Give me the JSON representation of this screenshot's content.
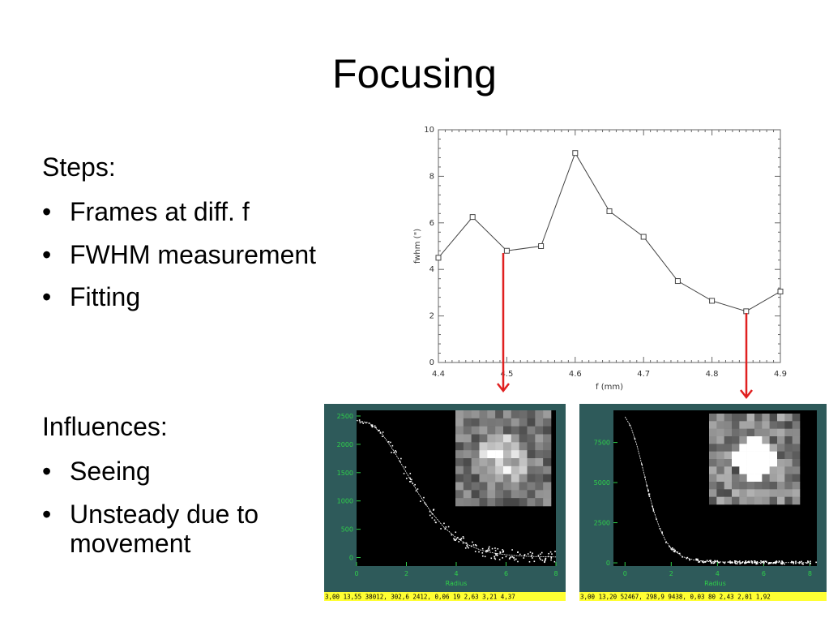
{
  "slide": {
    "title": "Focusing"
  },
  "steps": {
    "heading": "Steps:",
    "items": [
      "Frames at diff. f",
      "FWHM measurement",
      "Fitting"
    ]
  },
  "influences": {
    "heading": "Influences:",
    "items": [
      "Seeing",
      "Unsteady due to movement"
    ]
  },
  "colors": {
    "arrow": "#e02020",
    "panel_bg": "#2e5a5a",
    "axis_green": "#2fd04a",
    "status_yellow": "#ffff33"
  },
  "chart_data": [
    {
      "type": "line",
      "title": "",
      "xlabel": "f (mm)",
      "ylabel": "fwhm (\")",
      "xlim": [
        4.4,
        4.9
      ],
      "ylim": [
        0,
        10
      ],
      "x": [
        4.4,
        4.45,
        4.5,
        4.55,
        4.6,
        4.65,
        4.7,
        4.75,
        4.8,
        4.85,
        4.9
      ],
      "series": [
        {
          "values": [
            4.5,
            6.25,
            4.8,
            5.0,
            9.0,
            6.5,
            5.4,
            3.5,
            2.65,
            2.2,
            3.05
          ]
        }
      ],
      "xticks": [
        "4.4",
        "4.5",
        "4.6",
        "4.7",
        "4.8",
        "4.9"
      ],
      "yticks": [
        "0",
        "2",
        "4",
        "6",
        "8",
        "10"
      ],
      "marker": "square"
    },
    {
      "type": "scatter",
      "xlabel": "Radius",
      "ylabel": "",
      "xlim": [
        0,
        8
      ],
      "ylim": [
        -150,
        2600
      ],
      "xticks": [
        "0",
        "2",
        "4",
        "6",
        "8"
      ],
      "yticks": [
        "0",
        "500",
        "1000",
        "1500",
        "2000",
        "2500"
      ],
      "profile_fit": {
        "x": [
          0,
          0.5,
          1,
          1.5,
          2,
          2.5,
          3,
          3.5,
          4,
          4.5,
          5,
          5.5,
          6,
          6.5,
          7,
          7.5,
          8
        ],
        "y": [
          2420,
          2380,
          2200,
          1880,
          1500,
          1120,
          800,
          540,
          350,
          220,
          130,
          80,
          50,
          30,
          20,
          15,
          10
        ]
      },
      "status": "3,00  13,55  38012,   302,6   2412, 0,06   19 2,63     3,21     4,37"
    },
    {
      "type": "scatter",
      "xlabel": "Radius",
      "ylabel": "",
      "xlim": [
        -0.5,
        8.3
      ],
      "ylim": [
        -200,
        9500
      ],
      "xticks": [
        "0",
        "2",
        "4",
        "6",
        "8"
      ],
      "yticks": [
        "0",
        "2500",
        "5000",
        "7500"
      ],
      "profile_fit": {
        "x": [
          0,
          0.25,
          0.5,
          0.75,
          1,
          1.25,
          1.5,
          1.75,
          2,
          2.5,
          3,
          3.5,
          4,
          5,
          6,
          7,
          8
        ],
        "y": [
          9100,
          8500,
          7400,
          6000,
          4500,
          3200,
          2150,
          1400,
          900,
          380,
          170,
          90,
          60,
          30,
          20,
          15,
          10
        ]
      },
      "status": "3,00  13,20  52467,   298,9   9438, 0,03   80 2,43     2,01     1,92"
    }
  ]
}
